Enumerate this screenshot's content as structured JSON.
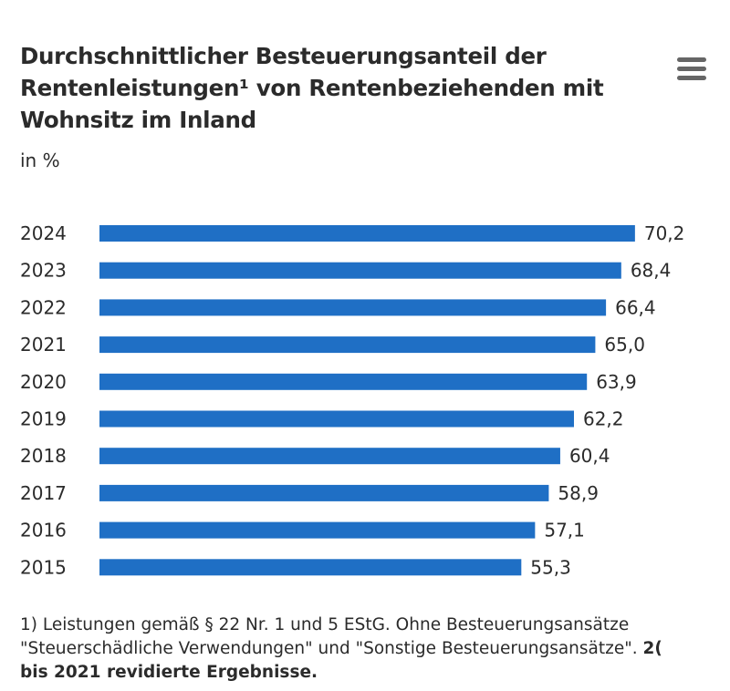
{
  "header": {
    "title_lines": [
      "Durchschnittlicher Besteuerungsanteil der",
      "Rentenleistungen¹ von Rentenbeziehenden mit",
      "Wohnsitz im Inland"
    ],
    "unit": "in %",
    "menu_icon": "hamburger-menu-icon"
  },
  "chart_data": {
    "type": "bar",
    "orientation": "horizontal",
    "title": "Durchschnittlicher Besteuerungsanteil der Rentenleistungen¹ von Rentenbeziehenden mit Wohnsitz im Inland",
    "unit": "in %",
    "categories": [
      "2024",
      "2023",
      "2022",
      "2021",
      "2020",
      "2019",
      "2018",
      "2017",
      "2016",
      "2015"
    ],
    "values": [
      70.2,
      68.4,
      66.4,
      65.0,
      63.9,
      62.2,
      60.4,
      58.9,
      57.1,
      55.3
    ],
    "labels": [
      "70,2",
      "68,4",
      "66,4",
      "65,0",
      "63,9",
      "62,2",
      "60,4",
      "58,9",
      "57,1",
      "55,3"
    ],
    "bar_color": "#1f6fc5",
    "grid": false,
    "legend": "none"
  },
  "footnote": {
    "line1": "1)  Leistungen gemäß § 22 Nr. 1 und 5 EStG. Ohne Besteuerungsansätze",
    "line2_regular": "\"Steuerschädliche Verwendungen\" und \"Sonstige Besteuerungsansätze\". ",
    "line2_bold": "2(",
    "line3_bold": "bis 2021 revidierte Ergebnisse."
  }
}
